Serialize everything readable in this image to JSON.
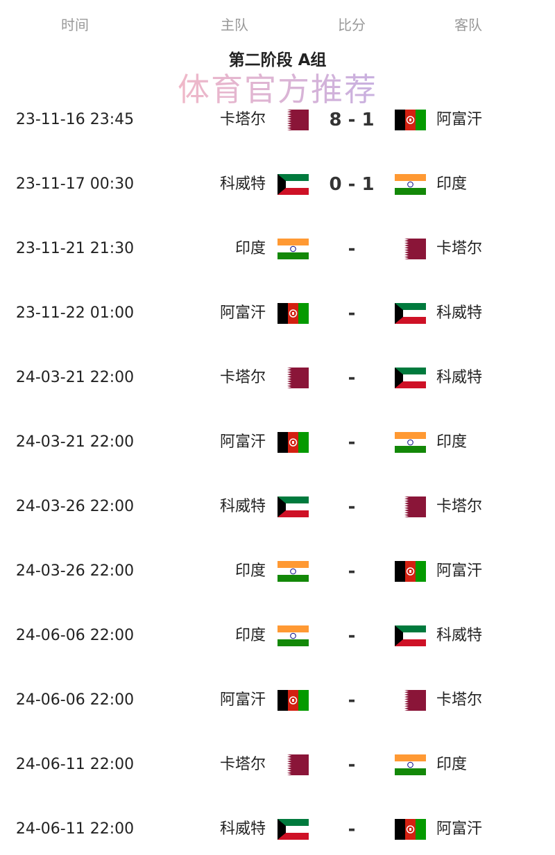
{
  "header": {
    "time": "时间",
    "home": "主队",
    "score": "比分",
    "away": "客队"
  },
  "group_title": "第二阶段 A组",
  "flag_icons": {
    "卡塔尔": "qatar-flag-icon",
    "阿富汗": "afghanistan-flag-icon",
    "科威特": "kuwait-flag-icon",
    "印度": "india-flag-icon"
  },
  "matches": [
    {
      "time": "23-11-16 23:45",
      "home": "卡塔尔",
      "score": "8 - 1",
      "away": "阿富汗"
    },
    {
      "time": "23-11-17 00:30",
      "home": "科威特",
      "score": "0 - 1",
      "away": "印度"
    },
    {
      "time": "23-11-21 21:30",
      "home": "印度",
      "score": "-",
      "away": "卡塔尔"
    },
    {
      "time": "23-11-22 01:00",
      "home": "阿富汗",
      "score": "-",
      "away": "科威特"
    },
    {
      "time": "24-03-21 22:00",
      "home": "卡塔尔",
      "score": "-",
      "away": "科威特"
    },
    {
      "time": "24-03-21 22:00",
      "home": "阿富汗",
      "score": "-",
      "away": "印度"
    },
    {
      "time": "24-03-26 22:00",
      "home": "科威特",
      "score": "-",
      "away": "卡塔尔"
    },
    {
      "time": "24-03-26 22:00",
      "home": "印度",
      "score": "-",
      "away": "阿富汗"
    },
    {
      "time": "24-06-06 22:00",
      "home": "印度",
      "score": "-",
      "away": "科威特"
    },
    {
      "time": "24-06-06 22:00",
      "home": "阿富汗",
      "score": "-",
      "away": "卡塔尔"
    },
    {
      "time": "24-06-11 22:00",
      "home": "卡塔尔",
      "score": "-",
      "away": "印度"
    },
    {
      "time": "24-06-11 22:00",
      "home": "科威特",
      "score": "-",
      "away": "阿富汗"
    }
  ],
  "watermark": "体育官方推荐"
}
